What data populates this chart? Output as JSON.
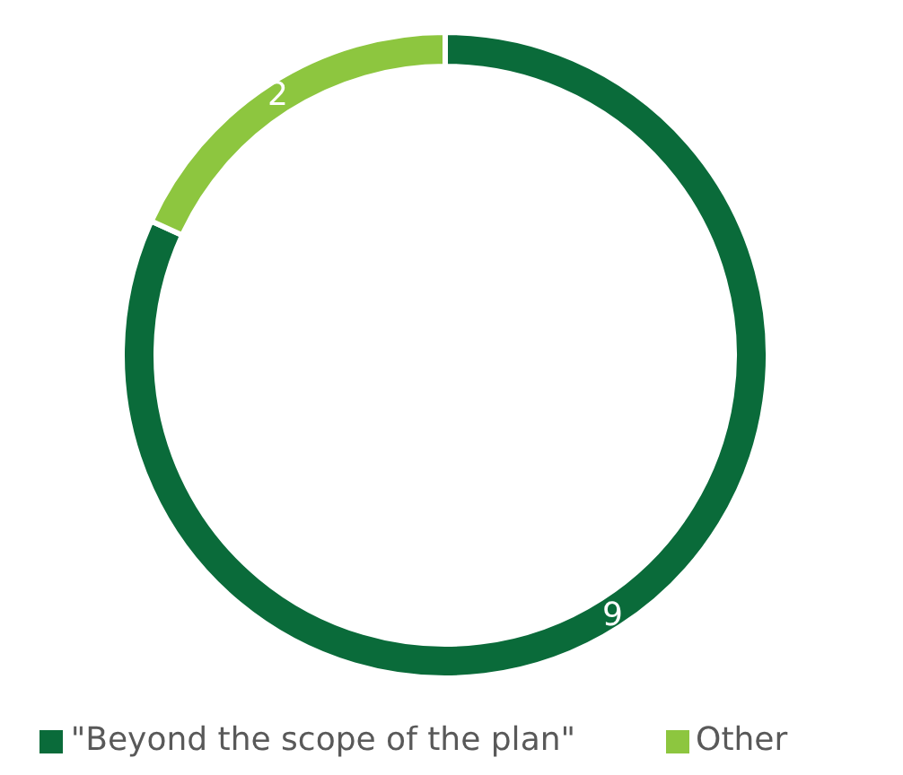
{
  "chart_data": {
    "type": "donut",
    "categories": [
      "\"Beyond the scope of the plan\"",
      "Other"
    ],
    "values": [
      9,
      2
    ],
    "colors": [
      "#0a6b3a",
      "#8dc63f"
    ],
    "data_labels": true,
    "legend": "bottom"
  }
}
